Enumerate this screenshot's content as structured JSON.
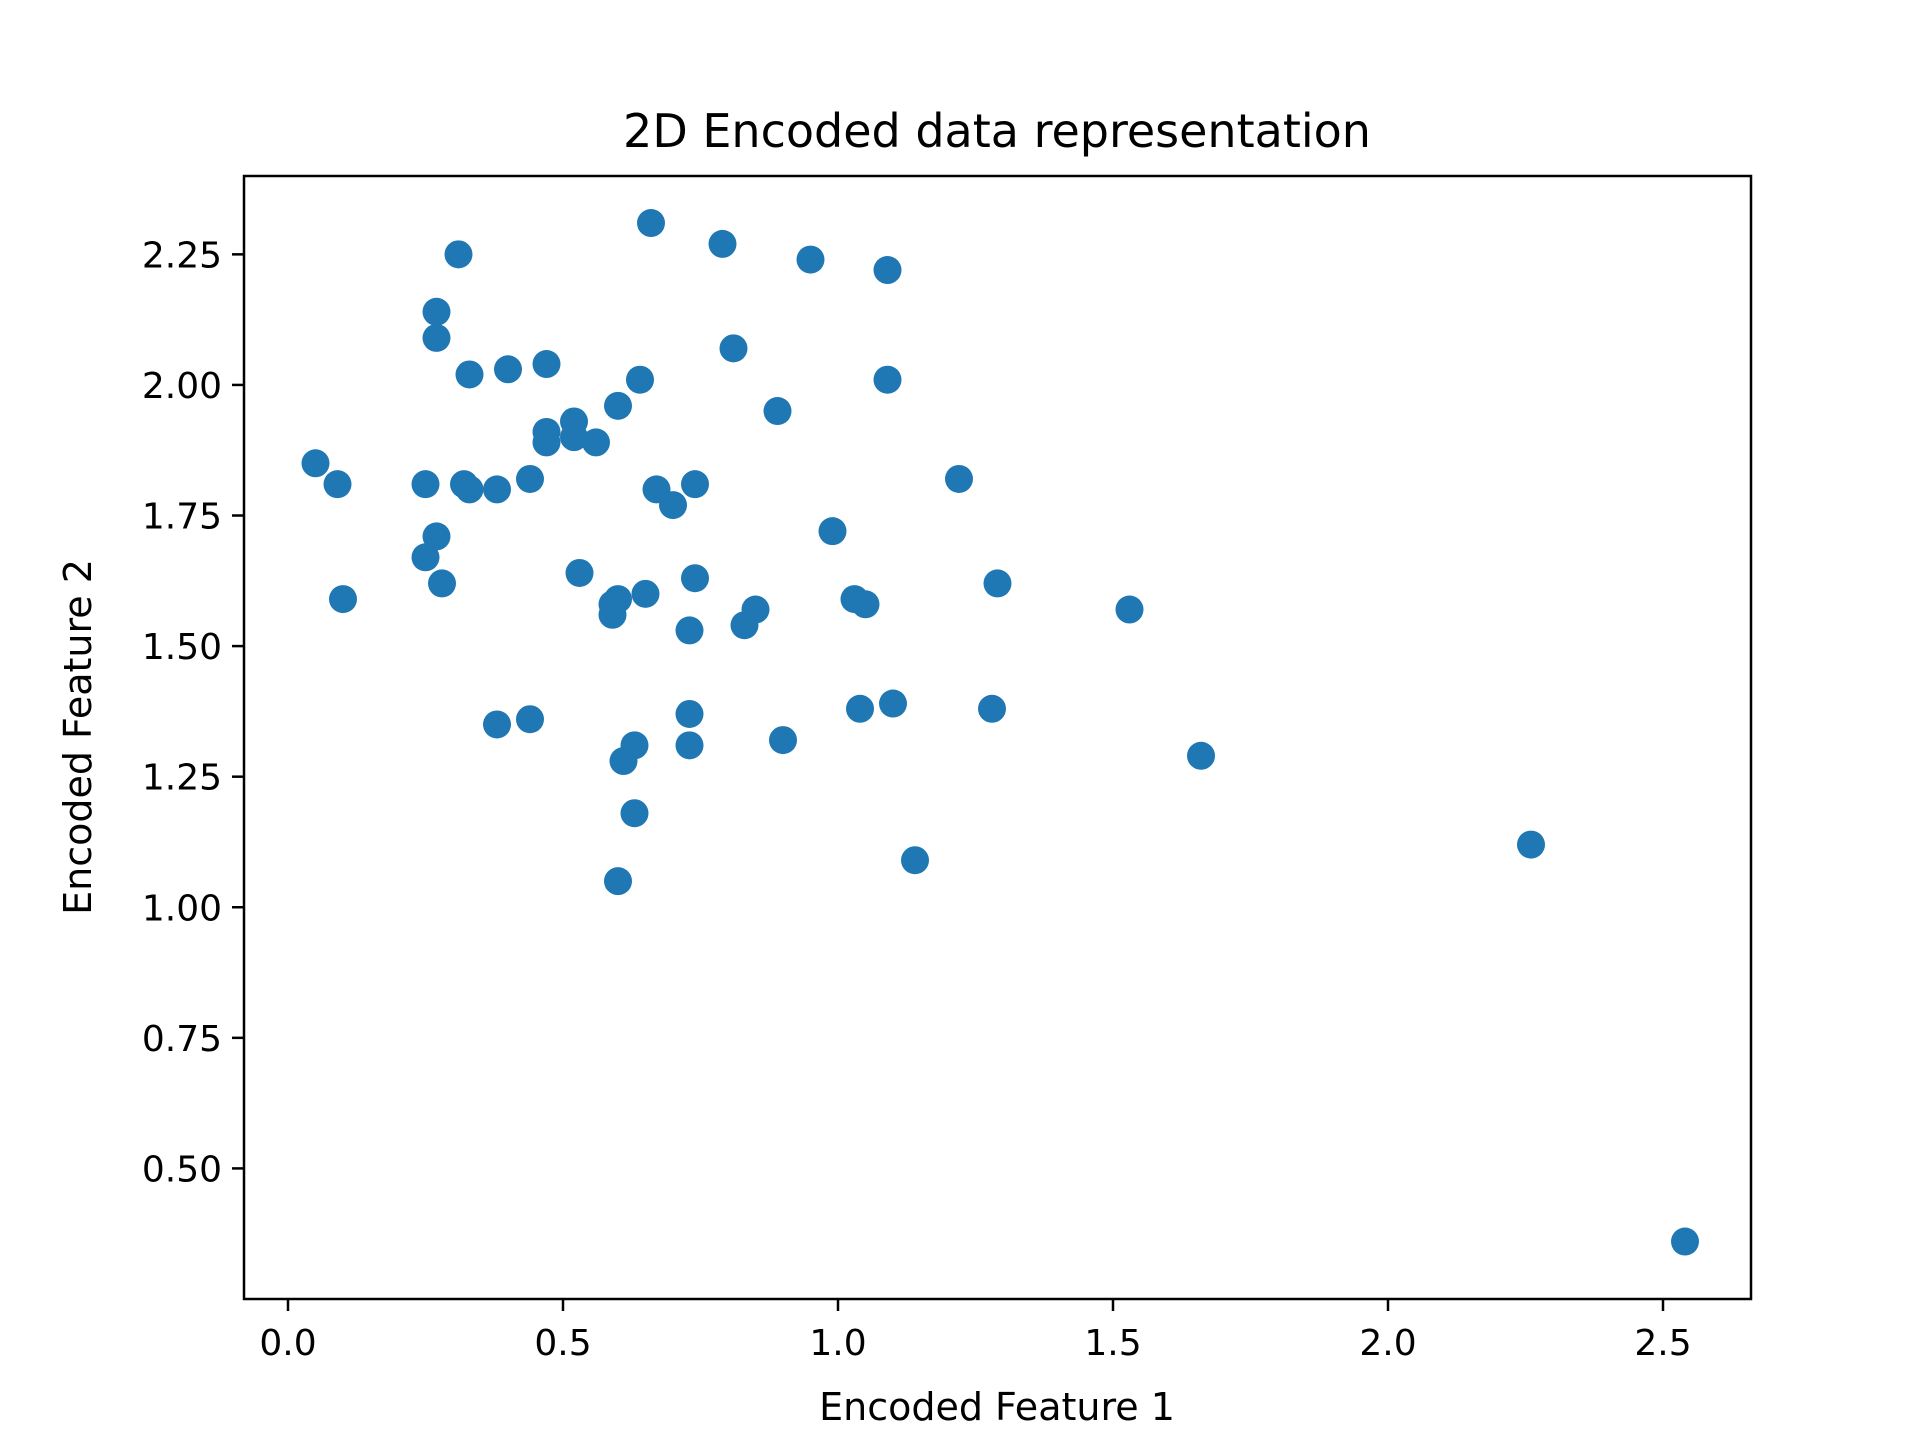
{
  "chart_data": {
    "type": "scatter",
    "title": "2D Encoded data representation",
    "xlabel": "Encoded Feature 1",
    "ylabel": "Encoded Feature 2",
    "xlim": [
      -0.08,
      2.66
    ],
    "ylim": [
      0.25,
      2.4
    ],
    "xticks": [
      0.0,
      0.5,
      1.0,
      1.5,
      2.0,
      2.5
    ],
    "xtick_labels": [
      "0.0",
      "0.5",
      "1.0",
      "1.5",
      "2.0",
      "2.5"
    ],
    "yticks": [
      0.5,
      0.75,
      1.0,
      1.25,
      1.5,
      1.75,
      2.0,
      2.25
    ],
    "ytick_labels": [
      "0.50",
      "0.75",
      "1.00",
      "1.25",
      "1.50",
      "1.75",
      "2.00",
      "2.25"
    ],
    "grid": false,
    "marker_color": "#1f77b4",
    "series": [
      {
        "points": [
          [
            0.05,
            1.85
          ],
          [
            0.09,
            1.81
          ],
          [
            0.1,
            1.59
          ],
          [
            0.25,
            1.81
          ],
          [
            0.25,
            1.67
          ],
          [
            0.27,
            1.71
          ],
          [
            0.28,
            1.62
          ],
          [
            0.27,
            2.14
          ],
          [
            0.27,
            2.09
          ],
          [
            0.31,
            2.25
          ],
          [
            0.32,
            1.81
          ],
          [
            0.33,
            1.8
          ],
          [
            0.33,
            2.02
          ],
          [
            0.38,
            1.8
          ],
          [
            0.38,
            1.35
          ],
          [
            0.4,
            2.03
          ],
          [
            0.44,
            1.82
          ],
          [
            0.44,
            1.36
          ],
          [
            0.47,
            2.04
          ],
          [
            0.47,
            1.91
          ],
          [
            0.47,
            1.89
          ],
          [
            0.52,
            1.93
          ],
          [
            0.52,
            1.9
          ],
          [
            0.53,
            1.64
          ],
          [
            0.56,
            1.89
          ],
          [
            0.59,
            1.58
          ],
          [
            0.59,
            1.56
          ],
          [
            0.6,
            1.59
          ],
          [
            0.6,
            1.96
          ],
          [
            0.61,
            1.28
          ],
          [
            0.6,
            1.05
          ],
          [
            0.63,
            1.31
          ],
          [
            0.63,
            1.18
          ],
          [
            0.64,
            2.01
          ],
          [
            0.65,
            1.6
          ],
          [
            0.66,
            2.31
          ],
          [
            0.67,
            1.8
          ],
          [
            0.7,
            1.77
          ],
          [
            0.73,
            1.53
          ],
          [
            0.73,
            1.37
          ],
          [
            0.73,
            1.31
          ],
          [
            0.74,
            1.81
          ],
          [
            0.74,
            1.63
          ],
          [
            0.79,
            2.27
          ],
          [
            0.81,
            2.07
          ],
          [
            0.83,
            1.54
          ],
          [
            0.85,
            1.57
          ],
          [
            0.89,
            1.95
          ],
          [
            0.9,
            1.32
          ],
          [
            0.95,
            2.24
          ],
          [
            0.99,
            1.72
          ],
          [
            1.03,
            1.59
          ],
          [
            1.05,
            1.58
          ],
          [
            1.04,
            1.38
          ],
          [
            1.09,
            2.22
          ],
          [
            1.09,
            2.01
          ],
          [
            1.1,
            1.39
          ],
          [
            1.14,
            1.09
          ],
          [
            1.22,
            1.82
          ],
          [
            1.28,
            1.38
          ],
          [
            1.29,
            1.62
          ],
          [
            1.53,
            1.57
          ],
          [
            1.66,
            1.29
          ],
          [
            2.26,
            1.12
          ],
          [
            2.54,
            0.36
          ]
        ]
      }
    ]
  }
}
